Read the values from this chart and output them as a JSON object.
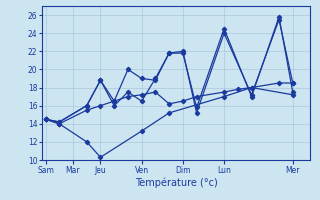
{
  "background_color": "#cce5f0",
  "grid_color": "#aac8dc",
  "line_color": "#1a3a9e",
  "xlabel": "Température (°c)",
  "ylim": [
    10,
    27
  ],
  "yticks": [
    10,
    12,
    14,
    16,
    18,
    20,
    22,
    24,
    26
  ],
  "day_labels": [
    "Sam",
    "Mar",
    "Jeu",
    "Ven",
    "Dim",
    "Lun",
    "Mer"
  ],
  "day_positions": [
    0,
    14,
    28,
    49,
    70,
    91,
    126
  ],
  "xlim": [
    -2,
    135
  ],
  "series": [
    {
      "x": [
        0,
        7,
        21,
        28,
        49,
        63,
        91,
        105,
        126
      ],
      "y": [
        14.5,
        14.0,
        12.0,
        10.3,
        13.2,
        15.2,
        17.0,
        18.0,
        17.2
      ]
    },
    {
      "x": [
        0,
        7,
        21,
        28,
        35,
        42,
        49,
        56,
        63,
        70,
        77,
        91,
        105,
        119,
        126
      ],
      "y": [
        14.5,
        14.2,
        16.0,
        18.8,
        16.5,
        20.0,
        19.0,
        18.8,
        21.8,
        22.0,
        15.2,
        24.0,
        17.2,
        25.5,
        18.5
      ]
    },
    {
      "x": [
        0,
        7,
        21,
        28,
        35,
        42,
        49,
        56,
        63,
        70,
        77,
        91,
        105,
        119,
        126
      ],
      "y": [
        14.5,
        14.2,
        16.0,
        18.8,
        16.0,
        17.5,
        16.5,
        19.0,
        21.8,
        21.8,
        15.8,
        24.5,
        17.0,
        25.8,
        17.5
      ]
    },
    {
      "x": [
        0,
        7,
        21,
        28,
        35,
        42,
        49,
        56,
        63,
        70,
        77,
        91,
        98,
        105,
        119,
        126
      ],
      "y": [
        14.5,
        14.0,
        15.5,
        16.0,
        16.5,
        17.0,
        17.2,
        17.5,
        16.2,
        16.5,
        17.0,
        17.5,
        17.8,
        18.0,
        18.5,
        18.5
      ]
    }
  ]
}
